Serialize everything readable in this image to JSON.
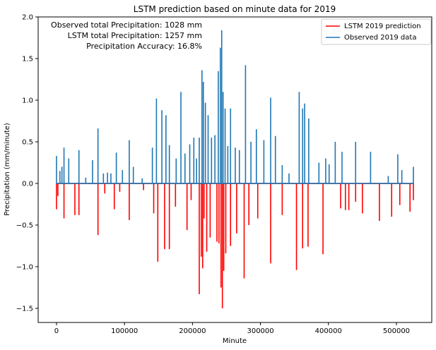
{
  "chart_data": {
    "type": "line",
    "title": "LSTM prediction based on minute data for 2019",
    "xlabel": "Minute",
    "ylabel": "Precipitation (mm/minute)",
    "xlim": [
      -27000,
      552000
    ],
    "ylim": [
      -1.67,
      2.0
    ],
    "xticks": [
      0,
      100000,
      200000,
      300000,
      400000,
      500000
    ],
    "xtick_labels": [
      "0",
      "100000",
      "200000",
      "300000",
      "400000",
      "500000"
    ],
    "yticks": [
      -1.5,
      -1.0,
      -0.5,
      0.0,
      0.5,
      1.0,
      1.5,
      2.0
    ],
    "ytick_labels": [
      "−1.5",
      "−1.0",
      "−0.5",
      "0.0",
      "0.5",
      "1.0",
      "1.5",
      "2.0"
    ],
    "grid": false,
    "legend_position": "top-right",
    "annotations": [
      "Observed total Precipitation: 1028 mm",
      "LSTM total Precipitation: 1257 mm",
      "Precipitation Accuracy: 16.8%"
    ],
    "series": [
      {
        "name": "LSTM 2019 prediction",
        "color": "#ff0000",
        "x": [
          0,
          2000,
          11000,
          27000,
          33000,
          61000,
          71000,
          85000,
          93000,
          107000,
          128000,
          143000,
          149000,
          159000,
          166000,
          175000,
          192000,
          198000,
          210000,
          213000,
          215000,
          217000,
          221000,
          226000,
          236000,
          239000,
          242000,
          244000,
          246000,
          249000,
          256000,
          265000,
          276000,
          283000,
          296000,
          315000,
          332000,
          353000,
          362000,
          370000,
          392000,
          418000,
          425000,
          430000,
          440000,
          450000,
          475000,
          493000,
          505000,
          520000,
          525000
        ],
        "values": [
          -0.31,
          -0.15,
          -0.42,
          -0.38,
          -0.38,
          -0.62,
          -0.12,
          -0.31,
          -0.1,
          -0.44,
          -0.08,
          -0.36,
          -0.94,
          -0.79,
          -0.79,
          -0.28,
          -0.56,
          -0.2,
          -1.33,
          -0.88,
          -1.02,
          -0.42,
          -0.82,
          -0.65,
          -0.7,
          -0.72,
          -1.25,
          -1.5,
          -1.05,
          -0.84,
          -0.75,
          -0.6,
          -1.14,
          -0.5,
          -0.42,
          -0.96,
          -0.38,
          -1.04,
          -0.78,
          -0.76,
          -0.85,
          -0.3,
          -0.32,
          -0.32,
          -0.22,
          -0.36,
          -0.45,
          -0.4,
          -0.26,
          -0.34,
          -0.2
        ]
      },
      {
        "name": "Observed 2019 data",
        "color": "#1f77b4",
        "x": [
          0,
          5000,
          8000,
          11000,
          18000,
          33000,
          43000,
          53000,
          61000,
          69000,
          75000,
          80000,
          88000,
          97000,
          107000,
          113000,
          126000,
          141000,
          147000,
          155000,
          161000,
          166000,
          176000,
          183000,
          189000,
          196000,
          202000,
          206000,
          210000,
          214000,
          216000,
          219000,
          223000,
          228000,
          233000,
          238000,
          241000,
          243000,
          245000,
          248000,
          252000,
          256000,
          263000,
          269000,
          278000,
          286000,
          294000,
          305000,
          315000,
          322000,
          332000,
          342000,
          357000,
          362000,
          365000,
          371000,
          386000,
          396000,
          401000,
          410000,
          420000,
          440000,
          462000,
          488000,
          502000,
          508000,
          525000
        ],
        "values": [
          0.33,
          0.15,
          0.2,
          0.43,
          0.3,
          0.4,
          0.07,
          0.28,
          0.66,
          0.12,
          0.13,
          0.12,
          0.37,
          0.16,
          0.52,
          0.2,
          0.06,
          0.43,
          1.02,
          0.88,
          0.82,
          0.46,
          0.3,
          1.1,
          0.36,
          0.47,
          0.55,
          0.3,
          0.55,
          1.36,
          1.22,
          0.97,
          0.82,
          0.55,
          0.58,
          1.35,
          1.63,
          1.84,
          1.1,
          0.9,
          0.45,
          0.9,
          0.43,
          0.4,
          1.42,
          0.5,
          0.65,
          0.52,
          1.03,
          0.57,
          0.22,
          0.12,
          1.1,
          0.9,
          0.96,
          0.78,
          0.25,
          0.3,
          0.23,
          0.5,
          0.38,
          0.5,
          0.38,
          0.09,
          0.35,
          0.16,
          0.2
        ]
      }
    ]
  }
}
